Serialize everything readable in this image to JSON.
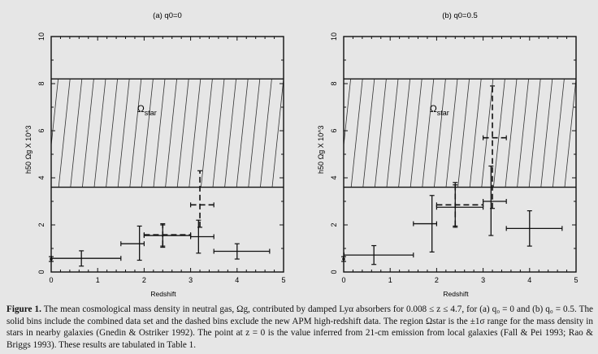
{
  "figure": {
    "label": "Figure 1.",
    "caption": "The mean cosmological mass density in neutral gas, Ωg, contributed by damped Lyα absorbers for 0.008 ≤ z ≤ 4.7, for (a) q₀ = 0 and (b) q₀ = 0.5. The solid bins include the combined data set and the dashed bins exclude the new APM high-redshift data. The region Ωstar is the ±1σ range for the mass density in stars in nearby galaxies (Gnedin & Ostriker 1992). The point at z = 0 is the value inferred from 21-cm emission from local galaxies (Fall & Pei 1993; Rao & Briggs 1993). These results are tabulated in Table 1."
  },
  "chart_data": [
    {
      "type": "scatter",
      "title": "(a) q0=0",
      "xlabel": "Redshift",
      "ylabel": "h50 Ωg X 10^3",
      "xlim": [
        0,
        5
      ],
      "ylim": [
        0,
        10
      ],
      "xticks": [
        "0",
        "1",
        "2",
        "3",
        "4",
        "5"
      ],
      "yticks": [
        "0",
        "2",
        "4",
        "6",
        "8",
        "10"
      ],
      "region": {
        "label": "Ωstar",
        "y_range": [
          3.6,
          8.2
        ]
      },
      "series": [
        {
          "name": "solid",
          "points": [
            {
              "x": 0.0,
              "y": 0.55,
              "xlo": 0.0,
              "xhi": 0.0,
              "ylo": 0.45,
              "yhi": 0.65
            },
            {
              "x": 0.65,
              "y": 0.58,
              "xlo": 0.008,
              "xhi": 1.5,
              "ylo": 0.25,
              "yhi": 0.9
            },
            {
              "x": 1.9,
              "y": 1.2,
              "xlo": 1.5,
              "xhi": 2.0,
              "ylo": 0.5,
              "yhi": 1.95
            },
            {
              "x": 2.4,
              "y": 1.55,
              "xlo": 2.0,
              "xhi": 3.0,
              "ylo": 1.05,
              "yhi": 2.05
            },
            {
              "x": 3.17,
              "y": 1.5,
              "xlo": 3.0,
              "xhi": 3.5,
              "ylo": 0.8,
              "yhi": 2.2
            },
            {
              "x": 4.0,
              "y": 0.88,
              "xlo": 3.5,
              "xhi": 4.7,
              "ylo": 0.55,
              "yhi": 1.2
            }
          ]
        },
        {
          "name": "dashed",
          "points": [
            {
              "x": 2.4,
              "y": 1.58,
              "xlo": 2.0,
              "xhi": 3.0,
              "ylo": 1.1,
              "yhi": 2.0
            },
            {
              "x": 3.2,
              "y": 2.85,
              "xlo": 3.0,
              "xhi": 3.5,
              "ylo": 1.9,
              "yhi": 4.3
            }
          ]
        }
      ]
    },
    {
      "type": "scatter",
      "title": "(b) q0=0.5",
      "xlabel": "Redshift",
      "ylabel": "h50 Ωg X 10^3",
      "xlim": [
        0,
        5
      ],
      "ylim": [
        0,
        10
      ],
      "xticks": [
        "0",
        "1",
        "2",
        "3",
        "4",
        "5"
      ],
      "yticks": [
        "0",
        "2",
        "4",
        "6",
        "8",
        "10"
      ],
      "region": {
        "label": "Ωstar",
        "y_range": [
          3.6,
          8.2
        ]
      },
      "series": [
        {
          "name": "solid",
          "points": [
            {
              "x": 0.0,
              "y": 0.55,
              "xlo": 0.0,
              "xhi": 0.0,
              "ylo": 0.45,
              "yhi": 0.65
            },
            {
              "x": 0.65,
              "y": 0.72,
              "xlo": 0.008,
              "xhi": 1.5,
              "ylo": 0.32,
              "yhi": 1.12
            },
            {
              "x": 1.9,
              "y": 2.05,
              "xlo": 1.5,
              "xhi": 2.0,
              "ylo": 0.85,
              "yhi": 3.25
            },
            {
              "x": 2.4,
              "y": 2.75,
              "xlo": 2.0,
              "xhi": 3.0,
              "ylo": 1.9,
              "yhi": 3.8
            },
            {
              "x": 3.17,
              "y": 3.0,
              "xlo": 3.0,
              "xhi": 3.5,
              "ylo": 1.55,
              "yhi": 4.5
            },
            {
              "x": 4.0,
              "y": 1.85,
              "xlo": 3.5,
              "xhi": 4.7,
              "ylo": 1.1,
              "yhi": 2.6
            }
          ]
        },
        {
          "name": "dashed",
          "points": [
            {
              "x": 2.4,
              "y": 2.85,
              "xlo": 2.0,
              "xhi": 3.0,
              "ylo": 1.95,
              "yhi": 3.7
            },
            {
              "x": 3.2,
              "y": 5.7,
              "xlo": 3.0,
              "xhi": 3.5,
              "ylo": 2.7,
              "yhi": 7.9
            }
          ]
        }
      ]
    }
  ]
}
